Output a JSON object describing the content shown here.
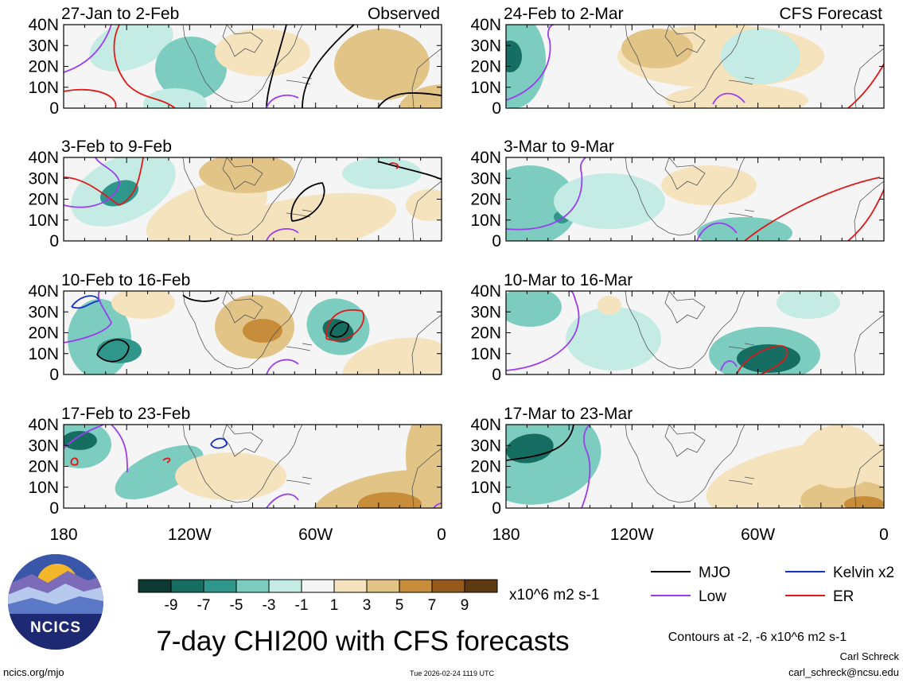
{
  "figure_title": "7-day CHI200 with CFS forecasts",
  "column_labels": {
    "left": "Observed",
    "right": "CFS Forecast"
  },
  "chart_data": {
    "type": "contour_map_panels",
    "variable": "CHI200",
    "units": "x10^6 m2 s-1",
    "x_axis": {
      "tick_labels": [
        "180",
        "120W",
        "60W",
        "0"
      ],
      "tick_values_deg_east": [
        -180,
        -120,
        -60,
        0
      ],
      "range": [
        -180,
        0
      ]
    },
    "y_axis": {
      "tick_labels": [
        "40N",
        "30N",
        "20N",
        "10N",
        "0"
      ],
      "tick_values": [
        40,
        30,
        20,
        10,
        0
      ],
      "range": [
        0,
        40
      ]
    },
    "panels": [
      {
        "title": "27-Jan to 2-Feb",
        "column": "Observed",
        "row": 1
      },
      {
        "title": "3-Feb to 9-Feb",
        "column": "Observed",
        "row": 2
      },
      {
        "title": "10-Feb to 16-Feb",
        "column": "Observed",
        "row": 3
      },
      {
        "title": "17-Feb to 23-Feb",
        "column": "Observed",
        "row": 4
      },
      {
        "title": "24-Feb to 2-Mar",
        "column": "CFS Forecast",
        "row": 1
      },
      {
        "title": "3-Mar to 9-Mar",
        "column": "CFS Forecast",
        "row": 2
      },
      {
        "title": "10-Mar to 16-Mar",
        "column": "CFS Forecast",
        "row": 3
      },
      {
        "title": "17-Mar to 23-Mar",
        "column": "CFS Forecast",
        "row": 4
      }
    ],
    "colorbar": {
      "tick_labels": [
        "-9",
        "-7",
        "-5",
        "-3",
        "-1",
        "1",
        "3",
        "5",
        "7",
        "9"
      ],
      "colors": [
        "#0c3a33",
        "#166e62",
        "#2e968a",
        "#7cccc0",
        "#c4ebe4",
        "#f5f5f5",
        "#f5e3bd",
        "#e3c487",
        "#c88d3a",
        "#955a1b",
        "#5e3a13"
      ],
      "units_label": "x10^6 m2 s-1"
    },
    "legend": [
      {
        "label": "MJO",
        "color": "#000000"
      },
      {
        "label": "Kelvin x2",
        "color": "#1030c8"
      },
      {
        "label": "Low",
        "color": "#9c3df0"
      },
      {
        "label": "ER",
        "color": "#e01818"
      }
    ],
    "contour_note": "Contours at -2, -6 x10^6 m2 s-1"
  },
  "logo": {
    "text": "NCICS"
  },
  "footer": {
    "site": "ncics.org/mjo",
    "timestamp": "Tue 2026-02-24 1119 UTC",
    "author": "Carl Schreck",
    "email": "carl_schreck@ncsu.edu"
  }
}
